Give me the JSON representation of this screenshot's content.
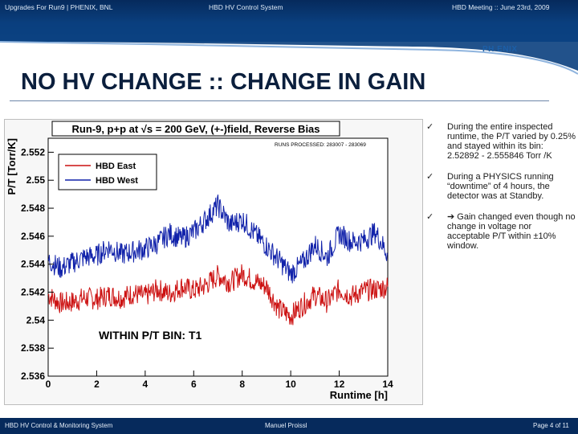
{
  "header": {
    "left": "Upgrades For Run9 | PHENIX, BNL",
    "center": "HBD HV Control System",
    "right": "HBD Meeting :: June 23rd, 2009"
  },
  "logo": "PH  ENIX",
  "slide_title": "NO HV CHANGE :: CHANGE IN GAIN",
  "bullets": [
    "During the entire inspected runtime, the P/T varied by 0.25% and stayed within its bin: 2.52892 - 2.555846 Torr /K",
    "During a PHYSICS running “downtime” of 4 hours, the detector was at Standby.",
    "➔ Gain changed even though no change in voltage nor acceptable P/T within ±10% window."
  ],
  "footer": {
    "left": "HBD HV Control & Monitoring System",
    "center": "Manuel Proissl",
    "right": "Page 4 of 11"
  },
  "chart_data": {
    "type": "line",
    "title": "Run-9, p+p at √s = 200 GeV, (+-)field, Reverse Bias",
    "subtitle": "RUNS PROCESSED: 283007 - 283069",
    "xlabel": "Runtime [h]",
    "ylabel": "P/T [Torr/K]",
    "xlim": [
      0,
      14
    ],
    "ylim": [
      2.536,
      2.553
    ],
    "x_ticks": [
      0,
      2,
      4,
      6,
      8,
      10,
      12,
      14
    ],
    "y_ticks": [
      2.536,
      2.538,
      2.54,
      2.542,
      2.544,
      2.546,
      2.548,
      2.55,
      2.552
    ],
    "annotation": "WITHIN P/T BIN: T1",
    "legend_position": "top-left",
    "series": [
      {
        "name": "HBD East",
        "color": "#cc1111",
        "x": [
          0,
          0.5,
          1,
          1.5,
          2,
          2.5,
          3,
          3.5,
          4,
          4.5,
          5,
          5.5,
          6,
          6.5,
          7,
          7.5,
          8,
          8.5,
          9,
          9.5,
          10,
          10.5,
          11,
          11.5,
          12,
          12.5,
          13,
          13.5,
          14
        ],
        "y": [
          2.5418,
          2.5412,
          2.5413,
          2.5416,
          2.5415,
          2.5418,
          2.5416,
          2.5419,
          2.5417,
          2.5422,
          2.5419,
          2.5424,
          2.5421,
          2.5425,
          2.5432,
          2.5427,
          2.5433,
          2.5428,
          2.5424,
          2.5408,
          2.5403,
          2.5411,
          2.5418,
          2.5413,
          2.5422,
          2.5417,
          2.5421,
          2.5422,
          2.5424
        ]
      },
      {
        "name": "HBD West",
        "color": "#1122aa",
        "x": [
          0,
          0.5,
          1,
          1.5,
          2,
          2.5,
          3,
          3.5,
          4,
          4.5,
          5,
          5.5,
          6,
          6.5,
          7,
          7.5,
          8,
          8.5,
          9,
          9.5,
          10,
          10.5,
          11,
          11.5,
          12,
          12.5,
          13,
          13.5,
          14
        ],
        "y": [
          2.5443,
          2.5437,
          2.5441,
          2.5445,
          2.5446,
          2.5452,
          2.5447,
          2.5449,
          2.5451,
          2.5455,
          2.5462,
          2.5458,
          2.5463,
          2.5472,
          2.5482,
          2.5468,
          2.5472,
          2.5462,
          2.5453,
          2.5443,
          2.5433,
          2.5441,
          2.5454,
          2.5445,
          2.5462,
          2.5456,
          2.5457,
          2.5463,
          2.5447
        ]
      }
    ]
  }
}
